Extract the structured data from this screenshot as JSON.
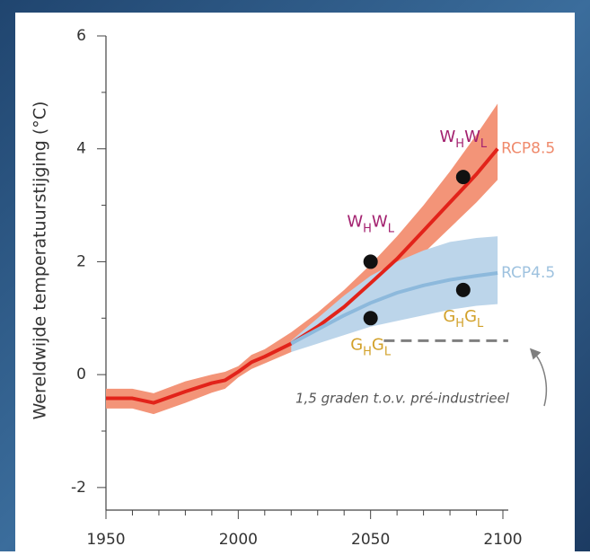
{
  "chart_data": {
    "type": "line",
    "y_label": "Wereldwijde temperatuurstijging (°C)",
    "xlim": [
      1950,
      2100
    ],
    "ylim": [
      -2.4,
      6
    ],
    "xticks": [
      1950,
      2000,
      2050,
      2100
    ],
    "xminor_ticks": [
      1960,
      1970,
      1980,
      1990,
      2010,
      2020,
      2030,
      2040,
      2060,
      2070,
      2080,
      2090
    ],
    "yticks": [
      -2,
      0,
      2,
      4,
      6
    ],
    "yminor_ticks": [
      -1,
      1,
      3,
      5
    ],
    "series": [
      {
        "name": "RCP8.5",
        "color": "#e2231a",
        "band_color": "#f39478",
        "label_color": "#ef8a6c",
        "x": [
          1950,
          1960,
          1968,
          1980,
          1990,
          1995,
          2000,
          2005,
          2010,
          2020,
          2030,
          2040,
          2050,
          2060,
          2070,
          2080,
          2090,
          2098
        ],
        "values": [
          -0.42,
          -0.42,
          -0.5,
          -0.3,
          -0.15,
          -0.1,
          0.05,
          0.22,
          0.32,
          0.55,
          0.85,
          1.2,
          1.62,
          2.05,
          2.55,
          3.05,
          3.55,
          4.0
        ],
        "upper": [
          -0.25,
          -0.25,
          -0.33,
          -0.12,
          0.0,
          0.05,
          0.15,
          0.35,
          0.45,
          0.75,
          1.1,
          1.5,
          1.95,
          2.45,
          3.0,
          3.6,
          4.25,
          4.8
        ],
        "lower": [
          -0.6,
          -0.6,
          -0.7,
          -0.5,
          -0.32,
          -0.25,
          -0.05,
          0.1,
          0.2,
          0.4,
          0.65,
          0.95,
          1.3,
          1.7,
          2.15,
          2.6,
          3.05,
          3.45
        ]
      },
      {
        "name": "RCP4.5",
        "color": "#8db9dc",
        "band_color": "#bcd5ea",
        "label_color": "#9ec2df",
        "x": [
          2020,
          2030,
          2040,
          2050,
          2060,
          2070,
          2080,
          2090,
          2098
        ],
        "values": [
          0.55,
          0.8,
          1.05,
          1.27,
          1.45,
          1.58,
          1.68,
          1.75,
          1.8
        ],
        "upper": [
          0.6,
          1.0,
          1.4,
          1.75,
          2.0,
          2.2,
          2.35,
          2.42,
          2.45
        ],
        "lower": [
          0.4,
          0.55,
          0.7,
          0.85,
          0.95,
          1.05,
          1.15,
          1.22,
          1.25
        ]
      }
    ],
    "points": [
      {
        "x": 2050,
        "y": 2,
        "label_parts": [
          "W",
          "H",
          "W",
          "L"
        ],
        "label_color": "#a3216f"
      },
      {
        "x": 2085,
        "y": 3.5,
        "label_parts": [
          "W",
          "H",
          "W",
          "L"
        ],
        "label_color": "#a3216f"
      },
      {
        "x": 2050,
        "y": 1,
        "label_parts": [
          "G",
          "H",
          "G",
          "L"
        ],
        "label_color": "#d2a12a"
      },
      {
        "x": 2085,
        "y": 1.5,
        "label_parts": [
          "G",
          "H",
          "G",
          "L"
        ],
        "label_color": "#d2a12a"
      }
    ],
    "reference_line": {
      "y": 0.6,
      "x_start": 2055,
      "x_end": 2102,
      "color": "#7f7f7f"
    },
    "annotation": "1,5 graden t.o.v. pré-industrieel"
  }
}
